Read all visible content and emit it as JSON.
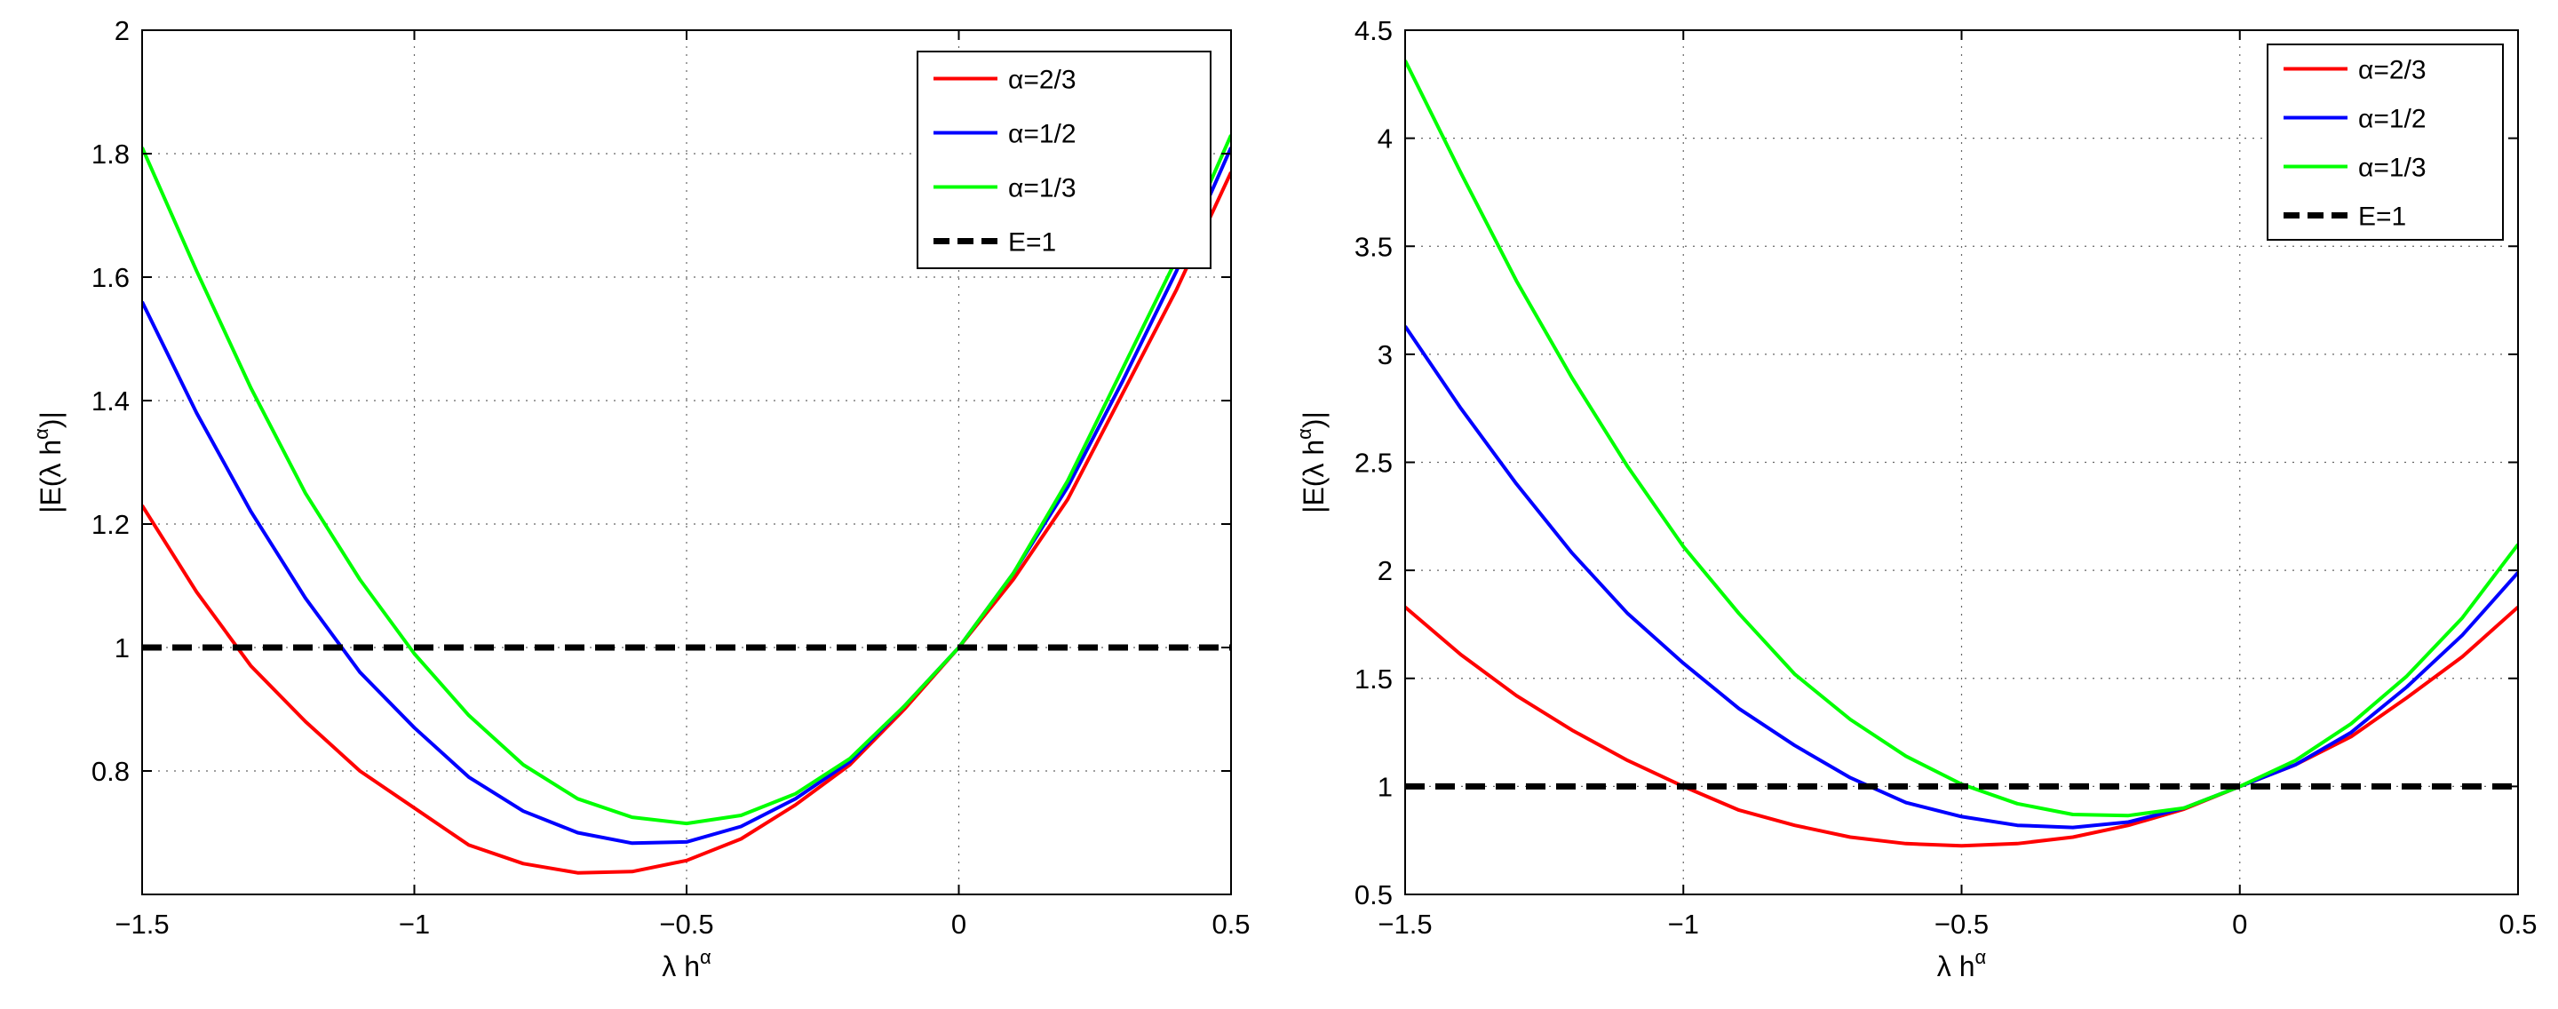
{
  "chart_data": [
    {
      "type": "line",
      "title": "",
      "xlabel": "λ h",
      "xlabel_sup": "α",
      "ylabel_pre": "|E(λ h",
      "ylabel_sup": "α",
      "ylabel_post": ")|",
      "xlim": [
        -1.5,
        0.5
      ],
      "ylim": [
        0.6,
        2.0
      ],
      "xticks": [
        -1.5,
        -1,
        -0.5,
        0,
        0.5
      ],
      "xtick_labels": [
        "−1.5",
        "−1",
        "−0.5",
        "0",
        "0.5"
      ],
      "yticks": [
        0.8,
        1.0,
        1.2,
        1.4,
        1.6,
        1.8,
        2.0
      ],
      "ytick_labels": [
        "0.8",
        "1",
        "1.2",
        "1.4",
        "1.6",
        "1.8",
        "2"
      ],
      "grid": true,
      "legend_position": "top-right",
      "x": [
        -1.5,
        -1.4,
        -1.3,
        -1.2,
        -1.1,
        -1.0,
        -0.9,
        -0.8,
        -0.7,
        -0.6,
        -0.5,
        -0.4,
        -0.3,
        -0.2,
        -0.1,
        0.0,
        0.1,
        0.2,
        0.3,
        0.4,
        0.5
      ],
      "series": [
        {
          "name": "α=2/3",
          "color": "#ff0000",
          "style": "solid",
          "values": [
            1.23,
            1.09,
            0.97,
            0.88,
            0.8,
            0.74,
            0.68,
            0.65,
            0.635,
            0.637,
            0.655,
            0.69,
            0.745,
            0.81,
            0.9,
            1.0,
            1.11,
            1.24,
            1.41,
            1.58,
            1.77
          ]
        },
        {
          "name": "α=1/2",
          "color": "#0000ff",
          "style": "solid",
          "values": [
            1.56,
            1.38,
            1.22,
            1.08,
            0.96,
            0.87,
            0.79,
            0.735,
            0.7,
            0.683,
            0.685,
            0.71,
            0.755,
            0.815,
            0.905,
            1.0,
            1.12,
            1.26,
            1.43,
            1.61,
            1.81
          ]
        },
        {
          "name": "α=1/3",
          "color": "#00ff00",
          "style": "solid",
          "values": [
            1.81,
            1.61,
            1.42,
            1.25,
            1.11,
            0.99,
            0.89,
            0.81,
            0.755,
            0.725,
            0.715,
            0.728,
            0.763,
            0.82,
            0.905,
            1.0,
            1.12,
            1.27,
            1.45,
            1.63,
            1.83
          ]
        },
        {
          "name": "E=1",
          "color": "#000000",
          "style": "dashed",
          "values": [
            1,
            1,
            1,
            1,
            1,
            1,
            1,
            1,
            1,
            1,
            1,
            1,
            1,
            1,
            1,
            1,
            1,
            1,
            1,
            1,
            1
          ]
        }
      ]
    },
    {
      "type": "line",
      "title": "",
      "xlabel": "λ h",
      "xlabel_sup": "α",
      "ylabel_pre": "|E(λ h",
      "ylabel_sup": "α",
      "ylabel_post": ")|",
      "xlim": [
        -1.5,
        0.5
      ],
      "ylim": [
        0.5,
        4.5
      ],
      "xticks": [
        -1.5,
        -1,
        -0.5,
        0,
        0.5
      ],
      "xtick_labels": [
        "−1.5",
        "−1",
        "−0.5",
        "0",
        "0.5"
      ],
      "yticks": [
        0.5,
        1.0,
        1.5,
        2.0,
        2.5,
        3.0,
        3.5,
        4.0,
        4.5
      ],
      "ytick_labels": [
        "0.5",
        "1",
        "1.5",
        "2",
        "2.5",
        "3",
        "3.5",
        "4",
        "4.5"
      ],
      "grid": true,
      "legend_position": "top-right",
      "x": [
        -1.5,
        -1.4,
        -1.3,
        -1.2,
        -1.1,
        -1.0,
        -0.9,
        -0.8,
        -0.7,
        -0.6,
        -0.5,
        -0.4,
        -0.3,
        -0.2,
        -0.1,
        0.0,
        0.1,
        0.2,
        0.3,
        0.4,
        0.5
      ],
      "series": [
        {
          "name": "α=2/3",
          "color": "#ff0000",
          "style": "solid",
          "values": [
            1.83,
            1.61,
            1.42,
            1.26,
            1.12,
            1.0,
            0.89,
            0.82,
            0.765,
            0.735,
            0.725,
            0.735,
            0.765,
            0.82,
            0.895,
            1.0,
            1.1,
            1.23,
            1.41,
            1.6,
            1.83
          ]
        },
        {
          "name": "α=1/2",
          "color": "#0000ff",
          "style": "solid",
          "values": [
            3.13,
            2.75,
            2.4,
            2.08,
            1.8,
            1.57,
            1.36,
            1.19,
            1.04,
            0.925,
            0.86,
            0.82,
            0.81,
            0.835,
            0.9,
            1.0,
            1.1,
            1.25,
            1.46,
            1.7,
            1.99
          ]
        },
        {
          "name": "α=1/3",
          "color": "#00ff00",
          "style": "solid",
          "values": [
            4.36,
            3.84,
            3.34,
            2.89,
            2.48,
            2.11,
            1.8,
            1.52,
            1.31,
            1.14,
            1.01,
            0.92,
            0.87,
            0.865,
            0.9,
            1.0,
            1.12,
            1.29,
            1.51,
            1.78,
            2.12
          ]
        },
        {
          "name": "E=1",
          "color": "#000000",
          "style": "dashed",
          "values": [
            1,
            1,
            1,
            1,
            1,
            1,
            1,
            1,
            1,
            1,
            1,
            1,
            1,
            1,
            1,
            1,
            1,
            1,
            1,
            1,
            1
          ]
        }
      ]
    }
  ]
}
